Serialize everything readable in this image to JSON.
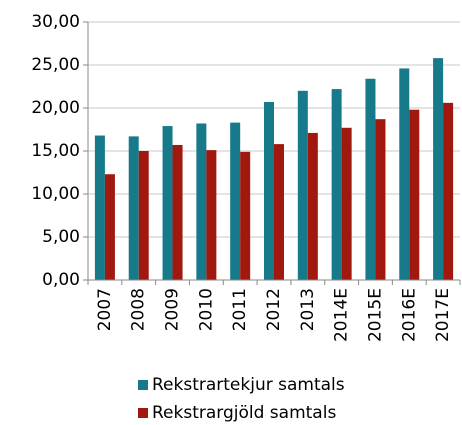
{
  "chart_data": {
    "type": "bar",
    "categories": [
      "2007",
      "2008",
      "2009",
      "2010",
      "2011",
      "2012",
      "2013",
      "2014E",
      "2015E",
      "2016E",
      "2017E"
    ],
    "series": [
      {
        "name": "Rekstrartekjur samtals",
        "color": "#177a8a",
        "values": [
          16.8,
          16.7,
          17.9,
          18.2,
          18.3,
          20.7,
          22.0,
          22.2,
          23.4,
          24.6,
          25.8
        ]
      },
      {
        "name": "Rekstrargjöld samtals",
        "color": "#a0180e",
        "values": [
          12.3,
          15.0,
          15.7,
          15.1,
          14.9,
          15.8,
          17.1,
          17.7,
          18.7,
          19.8,
          20.6
        ]
      }
    ],
    "ylim": [
      0,
      30
    ],
    "yticks": [
      {
        "value": 0,
        "label": "0,00"
      },
      {
        "value": 5,
        "label": "5,00"
      },
      {
        "value": 10,
        "label": "10,00"
      },
      {
        "value": 15,
        "label": "15,00"
      },
      {
        "value": 20,
        "label": "20,00"
      },
      {
        "value": 25,
        "label": "25,00"
      },
      {
        "value": 30,
        "label": "30,00"
      }
    ],
    "grid": true
  }
}
